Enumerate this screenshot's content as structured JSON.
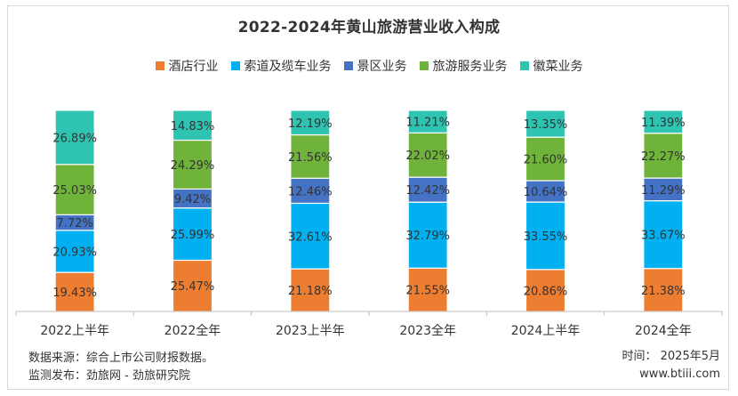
{
  "chart_data": {
    "type": "bar",
    "stacked": true,
    "title": "2022-2024年黄山旅游营业收入构成",
    "categories": [
      "2022上半年",
      "2022全年",
      "2023上半年",
      "2023全年",
      "2024上半年",
      "2024全年"
    ],
    "series": [
      {
        "name": "酒店行业",
        "color": "#ed7d31",
        "values": [
          19.43,
          25.47,
          21.18,
          21.55,
          20.86,
          21.38
        ],
        "labels": [
          "19.43%",
          "25.47%",
          "21.18%",
          "21.55%",
          "20.86%",
          "21.38%"
        ]
      },
      {
        "name": "索道及缆车业务",
        "color": "#00b0f0",
        "values": [
          20.93,
          25.99,
          32.61,
          32.79,
          33.55,
          33.67
        ],
        "labels": [
          "20.93%",
          "25.99%",
          "32.61%",
          "32.79%",
          "33.55%",
          "33.67%"
        ]
      },
      {
        "name": "景区业务",
        "color": "#4472c4",
        "values": [
          7.72,
          9.42,
          12.46,
          12.42,
          10.64,
          11.29
        ],
        "labels": [
          "7.72%",
          "9.42%",
          "12.46%",
          "12.42%",
          "10.64%",
          "11.29%"
        ]
      },
      {
        "name": "旅游服务业务",
        "color": "#70b33b",
        "values": [
          25.03,
          24.29,
          21.56,
          22.02,
          21.6,
          22.27
        ],
        "labels": [
          "25.03%",
          "24.29%",
          "21.56%",
          "22.02%",
          "21.60%",
          "22.27%"
        ]
      },
      {
        "name": "徽菜业务",
        "color": "#2fc4b2",
        "values": [
          26.89,
          14.83,
          12.19,
          11.21,
          13.35,
          11.39
        ],
        "labels": [
          "26.89%",
          "14.83%",
          "12.19%",
          "11.21%",
          "13.35%",
          "11.39%"
        ]
      }
    ],
    "ylim": [
      0,
      100
    ],
    "legend_position": "top",
    "grid": false
  },
  "footer": {
    "source": "数据来源：综合上市公司财报数据。",
    "publisher": "监测发布：劲旅网 - 劲旅研究院",
    "date": "时间： 2025年5月",
    "site": "www.btiii.com"
  }
}
